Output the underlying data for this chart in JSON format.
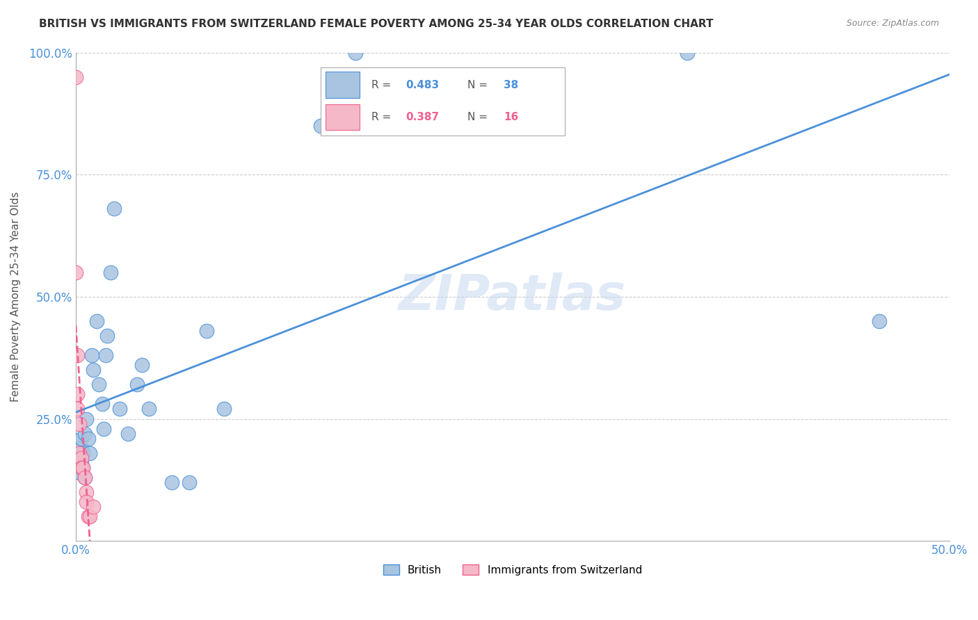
{
  "title": "BRITISH VS IMMIGRANTS FROM SWITZERLAND FEMALE POVERTY AMONG 25-34 YEAR OLDS CORRELATION CHART",
  "source": "Source: ZipAtlas.com",
  "ylabel": "Female Poverty Among 25-34 Year Olds",
  "xlim": [
    0.0,
    0.5
  ],
  "ylim": [
    0.0,
    1.0
  ],
  "british_R": 0.483,
  "british_N": 38,
  "swiss_R": 0.387,
  "swiss_N": 16,
  "british_color": "#a8c4e0",
  "swiss_color": "#f4b8c8",
  "british_line_color": "#4a90d9",
  "swiss_line_color": "#f06090",
  "watermark": "ZIPatlas",
  "british_x": [
    0.0,
    0.001,
    0.001,
    0.002,
    0.002,
    0.003,
    0.003,
    0.003,
    0.004,
    0.004,
    0.005,
    0.005,
    0.006,
    0.007,
    0.008,
    0.009,
    0.01,
    0.012,
    0.013,
    0.015,
    0.016,
    0.017,
    0.018,
    0.02,
    0.022,
    0.025,
    0.03,
    0.035,
    0.038,
    0.042,
    0.055,
    0.065,
    0.075,
    0.085,
    0.14,
    0.16,
    0.35,
    0.46
  ],
  "british_y": [
    0.2,
    0.19,
    0.17,
    0.15,
    0.14,
    0.16,
    0.19,
    0.21,
    0.18,
    0.15,
    0.13,
    0.22,
    0.25,
    0.21,
    0.18,
    0.38,
    0.35,
    0.45,
    0.32,
    0.28,
    0.23,
    0.38,
    0.42,
    0.55,
    0.68,
    0.27,
    0.22,
    0.32,
    0.36,
    0.27,
    0.12,
    0.12,
    0.43,
    0.27,
    0.85,
    1.0,
    1.0,
    0.45
  ],
  "swiss_x": [
    0.0,
    0.0,
    0.001,
    0.001,
    0.001,
    0.002,
    0.002,
    0.003,
    0.003,
    0.004,
    0.005,
    0.006,
    0.006,
    0.007,
    0.008,
    0.01
  ],
  "swiss_y": [
    0.95,
    0.55,
    0.38,
    0.3,
    0.27,
    0.24,
    0.18,
    0.17,
    0.15,
    0.15,
    0.13,
    0.1,
    0.08,
    0.05,
    0.05,
    0.07
  ]
}
